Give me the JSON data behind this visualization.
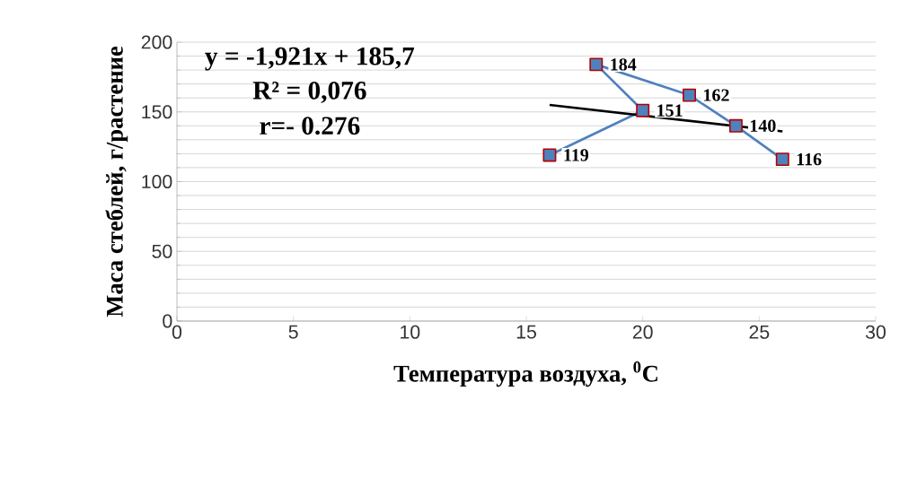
{
  "chart_data": {
    "type": "line",
    "xlabel": "Температура воздуха, $^{0}$C",
    "ylabel": "Маса стеблей, г/растение",
    "annotations": [
      "y = -1,921x + 185,7",
      "R² = 0,076",
      "r=- 0.276"
    ],
    "series": [
      {
        "x": [
          16,
          20,
          18,
          22,
          24,
          26
        ],
        "values": [
          119,
          151,
          184,
          162,
          140,
          116
        ],
        "color": "#4f81bd",
        "marker": "square",
        "data_labels": true
      },
      {
        "x": [
          16,
          26
        ],
        "values": [
          155,
          136
        ],
        "color": "#000000",
        "marker": "none"
      }
    ],
    "xlim": [
      0,
      30
    ],
    "xticks": [
      0,
      5,
      10,
      15,
      20,
      25,
      30
    ],
    "ylim": [
      0,
      200
    ],
    "yticks": [
      0,
      50,
      100,
      150,
      200
    ],
    "grid": "y"
  }
}
